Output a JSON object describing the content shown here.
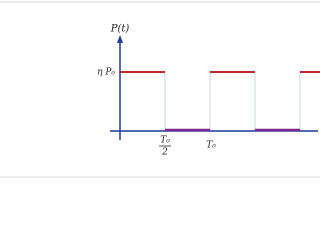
{
  "axis_label": "P(t)",
  "level_label": "η P₀",
  "tick_labels": {
    "half_period": {
      "numerator": "T₀",
      "denominator": "2"
    },
    "period": "T₀"
  }
}
